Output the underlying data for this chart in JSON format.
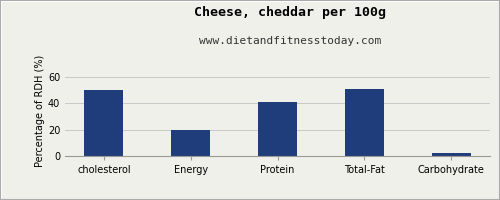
{
  "title": "Cheese, cheddar per 100g",
  "subtitle": "www.dietandfitnesstoday.com",
  "categories": [
    "cholesterol",
    "Energy",
    "Protein",
    "Total-Fat",
    "Carbohydrate"
  ],
  "values": [
    50,
    20,
    41,
    51,
    2.5
  ],
  "bar_color": "#1f3d7a",
  "ylabel": "Percentage of RDH (%)",
  "ylim": [
    0,
    68
  ],
  "yticks": [
    0,
    20,
    40,
    60
  ],
  "background_color": "#f0f0eb",
  "grid_color": "#c8c8c8",
  "title_fontsize": 9.5,
  "subtitle_fontsize": 8,
  "label_fontsize": 7,
  "tick_fontsize": 7,
  "bar_width": 0.45
}
